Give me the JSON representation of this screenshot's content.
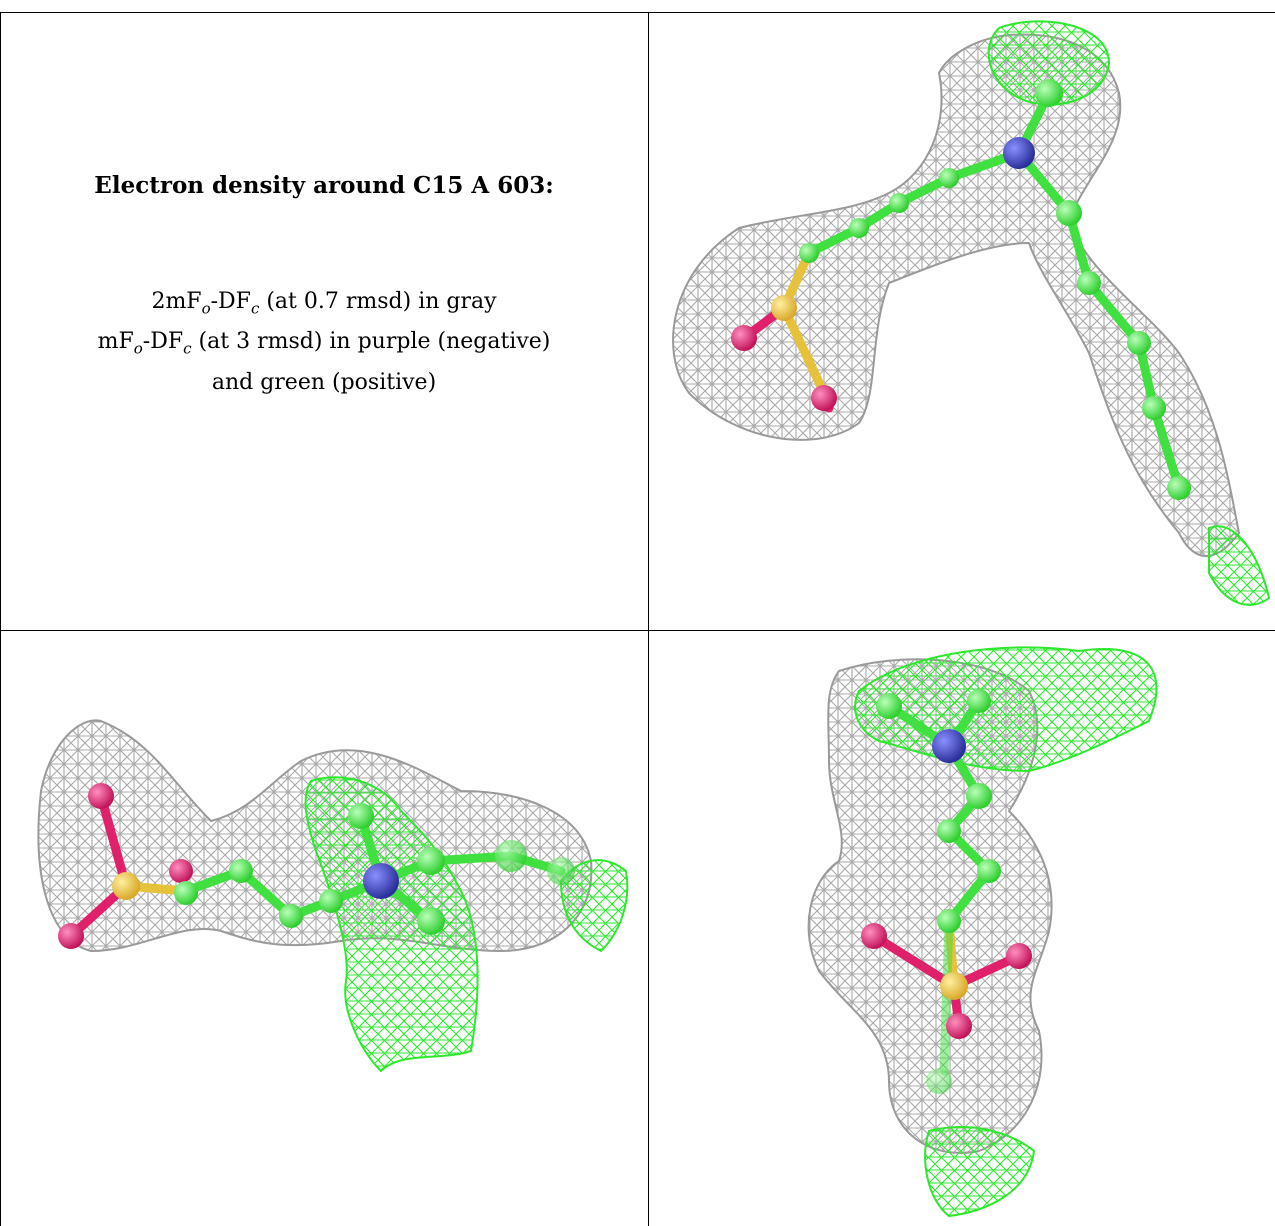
{
  "caption": {
    "title": "Electron density around C15 A 603:",
    "line1_prefix": "2mF",
    "line1_sub_o": "o",
    "line1_mid": "-DF",
    "line1_sub_c": "c",
    "line1_suffix": " (at 0.7 rmsd) in gray",
    "line2_prefix": "mF",
    "line2_sub_o": "o",
    "line2_mid": "-DF",
    "line2_sub_c": "c",
    "line2_suffix": " (at 3 rmsd) in purple (negative)",
    "line3": "and green (positive)"
  },
  "colors": {
    "mesh_gray": "#a9a9a9",
    "mesh_green": "#2ee82e",
    "carbon": "#3fe03f",
    "nitrogen": "#3a3fb5",
    "oxygen": "#e0206a",
    "sulfur": "#e6c13a",
    "border": "#000000"
  },
  "panels": [
    {
      "name": "view-top-right",
      "icon": "molecule-density-view"
    },
    {
      "name": "view-bottom-left",
      "icon": "molecule-density-view"
    },
    {
      "name": "view-bottom-right",
      "icon": "molecule-density-view"
    }
  ]
}
